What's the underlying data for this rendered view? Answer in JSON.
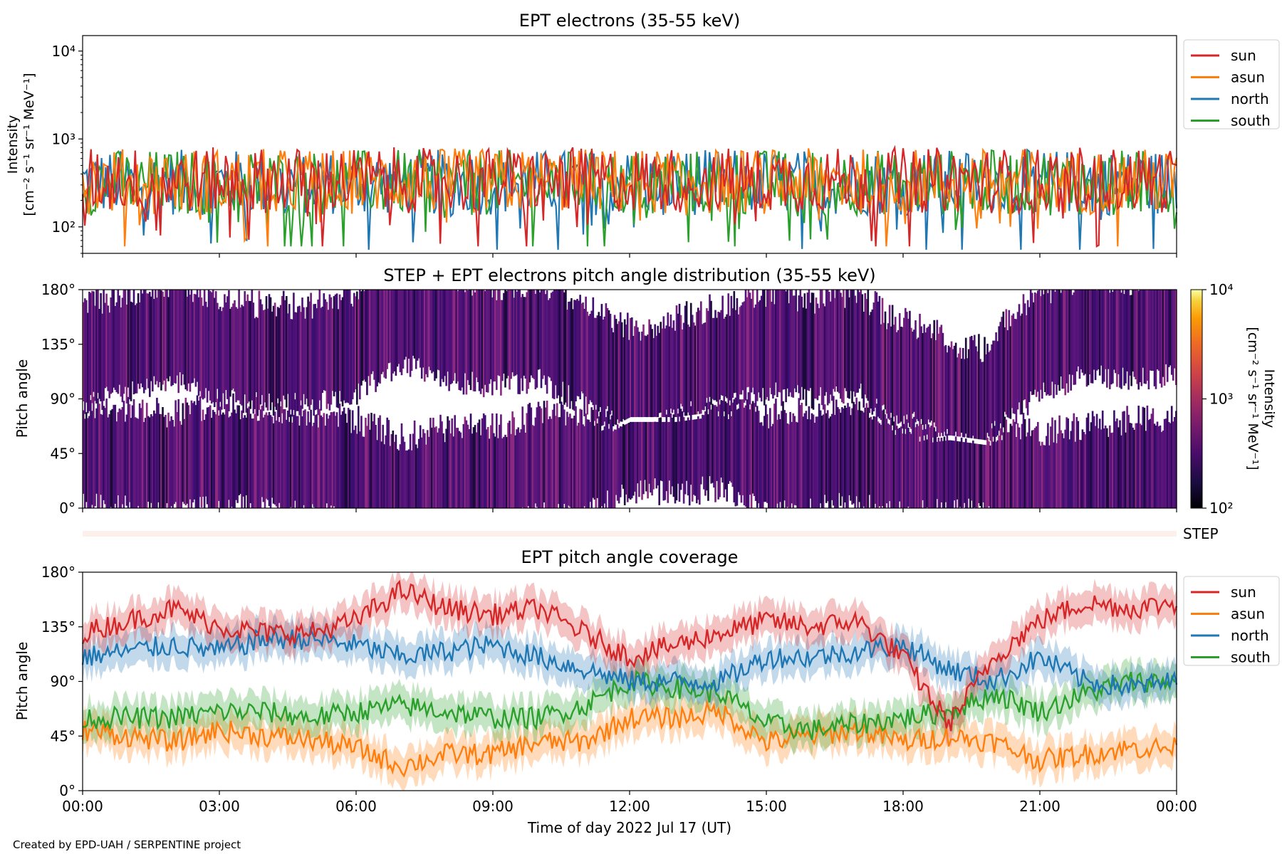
{
  "chart_data": [
    {
      "type": "line",
      "title": "EPT electrons (35-55 keV)",
      "ylabel_lines": [
        "Intensity",
        "[cm⁻² s⁻¹ sr⁻¹ MeV⁻¹]"
      ],
      "yscale": "log",
      "ylim": [
        50,
        15000
      ],
      "yticks": [
        {
          "value": 100,
          "label": "10²"
        },
        {
          "value": 1000,
          "label": "10³"
        },
        {
          "value": 10000,
          "label": "10⁴"
        }
      ],
      "xlim": [
        "00:00",
        "24:00"
      ],
      "legend_position": "outside right, top",
      "series": [
        {
          "name": "sun",
          "color": "#d62728",
          "typical": 340,
          "min": 60,
          "max": 850
        },
        {
          "name": "asun",
          "color": "#ff7f0e",
          "typical": 330,
          "min": 60,
          "max": 850
        },
        {
          "name": "north",
          "color": "#1f77b4",
          "typical": 320,
          "min": 55,
          "max": 980
        },
        {
          "name": "south",
          "color": "#2ca02c",
          "typical": 320,
          "min": 60,
          "max": 960
        }
      ]
    },
    {
      "type": "heatmap",
      "title": "STEP + EPT electrons pitch angle distribution (35-55 keV)",
      "ylabel": "Pitch angle",
      "ylim": [
        0,
        180
      ],
      "yticks": [
        {
          "value": 0,
          "label": "0°"
        },
        {
          "value": 45,
          "label": "45°"
        },
        {
          "value": 90,
          "label": "90°"
        },
        {
          "value": 135,
          "label": "135°"
        },
        {
          "value": 180,
          "label": "180°"
        }
      ],
      "colorbar": {
        "scale": "log",
        "range": [
          100,
          10000
        ],
        "ticks": [
          {
            "value": 100,
            "label": "10²"
          },
          {
            "value": 1000,
            "label": "10³"
          },
          {
            "value": 10000,
            "label": "10⁴"
          }
        ],
        "label_lines": [
          "Intensity",
          "[cm⁻² s⁻¹ sr⁻¹ MeV⁻¹]"
        ],
        "colormap": "inferno"
      },
      "typical_intensity": 300
    },
    {
      "type": "bar",
      "label": "STEP",
      "note": "thin empty strip, no data shown"
    },
    {
      "type": "line",
      "title": "EPT pitch angle coverage",
      "ylabel": "Pitch angle",
      "xlabel": "Time of day 2022 Jul 17 (UT)",
      "ylim": [
        0,
        180
      ],
      "yticks": [
        {
          "value": 0,
          "label": "0°"
        },
        {
          "value": 45,
          "label": "45°"
        },
        {
          "value": 90,
          "label": "90°"
        },
        {
          "value": 135,
          "label": "135°"
        },
        {
          "value": 180,
          "label": "180°"
        }
      ],
      "xticks": [
        {
          "value": 0,
          "label": "00:00"
        },
        {
          "value": 3,
          "label": "03:00"
        },
        {
          "value": 6,
          "label": "06:00"
        },
        {
          "value": 9,
          "label": "09:00"
        },
        {
          "value": 12,
          "label": "12:00"
        },
        {
          "value": 15,
          "label": "15:00"
        },
        {
          "value": 18,
          "label": "18:00"
        },
        {
          "value": 21,
          "label": "21:00"
        },
        {
          "value": 24,
          "label": "00:00"
        }
      ],
      "legend_position": "outside right, top",
      "shaded_band": "spread around each sector's pitch angle",
      "x": [
        "00:00",
        "01:00",
        "02:00",
        "03:00",
        "04:00",
        "05:00",
        "06:00",
        "07:00",
        "08:00",
        "09:00",
        "10:00",
        "11:00",
        "12:00",
        "13:00",
        "14:00",
        "15:00",
        "16:00",
        "17:00",
        "18:00",
        "19:00",
        "20:00",
        "21:00",
        "22:00",
        "23:00",
        "24:00"
      ],
      "series": [
        {
          "name": "sun",
          "color": "#d62728",
          "values": [
            130,
            140,
            150,
            135,
            130,
            130,
            140,
            165,
            150,
            145,
            150,
            130,
            110,
            120,
            130,
            140,
            135,
            140,
            110,
            55,
            110,
            140,
            155,
            150,
            155
          ]
        },
        {
          "name": "asun",
          "color": "#ff7f0e",
          "values": [
            50,
            45,
            40,
            50,
            45,
            42,
            35,
            20,
            30,
            30,
            40,
            40,
            60,
            60,
            65,
            40,
            45,
            50,
            40,
            45,
            40,
            25,
            30,
            35,
            35
          ]
        },
        {
          "name": "north",
          "color": "#1f77b4",
          "values": [
            110,
            115,
            120,
            115,
            125,
            125,
            120,
            110,
            115,
            120,
            110,
            100,
            90,
            90,
            90,
            110,
            110,
            115,
            120,
            100,
            90,
            110,
            90,
            85,
            90
          ]
        },
        {
          "name": "south",
          "color": "#2ca02c",
          "values": [
            60,
            60,
            60,
            65,
            65,
            60,
            65,
            70,
            65,
            60,
            60,
            70,
            90,
            85,
            80,
            55,
            50,
            55,
            60,
            65,
            80,
            65,
            80,
            90,
            90
          ]
        }
      ]
    }
  ],
  "footer_text": "Created by EPD-UAH / SERPENTINE project"
}
